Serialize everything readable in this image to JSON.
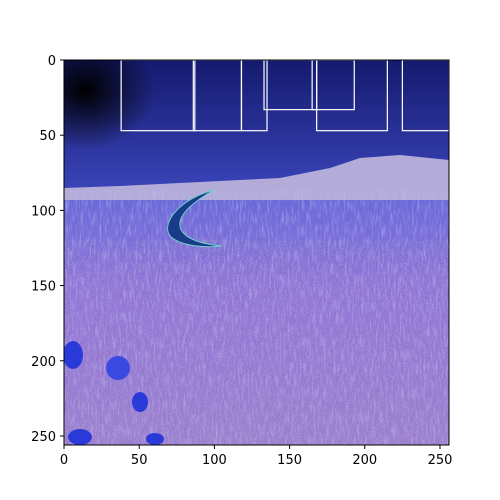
{
  "chart_data": {
    "type": "image",
    "title": "",
    "xlabel": "",
    "ylabel": "",
    "xlim": [
      0,
      256
    ],
    "ylim": [
      256,
      0
    ],
    "y_axis_inverted": true,
    "grid": false,
    "x_ticks": [
      0,
      50,
      100,
      150,
      200,
      250
    ],
    "y_ticks": [
      0,
      50,
      100,
      150,
      200,
      250
    ],
    "image_content": "color-inverted photo of a flower meadow under a dark blue sky with a crescent-shaped object",
    "overlay_rectangles": [
      {
        "x0": 38,
        "y0": 0,
        "x1": 87,
        "y1": 47
      },
      {
        "x0": 86,
        "y0": 0,
        "x1": 118,
        "y1": 47
      },
      {
        "x0": 118,
        "y0": 0,
        "x1": 135,
        "y1": 47
      },
      {
        "x0": 133,
        "y0": 0,
        "x1": 168,
        "y1": 33
      },
      {
        "x0": 165,
        "y0": 0,
        "x1": 193,
        "y1": 33
      },
      {
        "x0": 168,
        "y0": 0,
        "x1": 215,
        "y1": 47
      },
      {
        "x0": 225,
        "y0": 0,
        "x1": 256,
        "y1": 47
      }
    ],
    "colors": {
      "sky_top": "#141a6e",
      "sky_bottom": "#3a44b8",
      "hills": "#b3acd8",
      "meadow": "#8e74d8",
      "meadow_dark": "#5248b6",
      "flower_yellow": "#e8c24a",
      "crescent": "#1a3a8a",
      "rectangles": "#ffffff"
    }
  }
}
